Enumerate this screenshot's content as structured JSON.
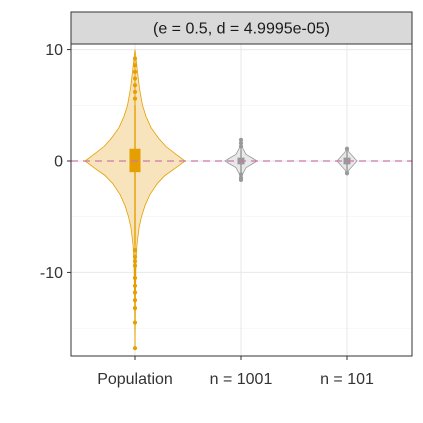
{
  "chart_data": {
    "type": "violin",
    "facet_label": "(e = 0.5, d = 4.9995e-05)",
    "categories": [
      "Population",
      "n = 1001",
      "n = 101"
    ],
    "ylim": [
      -17.5,
      10.5
    ],
    "yticks": [
      {
        "value": 10,
        "label": "10"
      },
      {
        "value": 0,
        "label": "0"
      },
      {
        "value": -10,
        "label": "-10"
      }
    ],
    "reference_line": {
      "value": 0,
      "style": "dashed",
      "color": "#cc79a7"
    },
    "grid": true,
    "series": [
      {
        "category": "Population",
        "color": "#e69f00",
        "fill": "#f6e0b5",
        "profile": [
          [
            10.0,
            0.0
          ],
          [
            9.2,
            0.02
          ],
          [
            8.0,
            0.05
          ],
          [
            6.5,
            0.09
          ],
          [
            5.0,
            0.15
          ],
          [
            4.0,
            0.22
          ],
          [
            3.0,
            0.32
          ],
          [
            2.0,
            0.48
          ],
          [
            1.3,
            0.62
          ],
          [
            0.6,
            0.82
          ],
          [
            0.0,
            1.0
          ],
          [
            -0.6,
            0.82
          ],
          [
            -1.3,
            0.6
          ],
          [
            -2.0,
            0.45
          ],
          [
            -3.0,
            0.3
          ],
          [
            -4.0,
            0.2
          ],
          [
            -5.0,
            0.13
          ],
          [
            -6.0,
            0.08
          ],
          [
            -7.5,
            0.04
          ],
          [
            -9.0,
            0.02
          ],
          [
            -12.0,
            0.01
          ],
          [
            -16.8,
            0.0
          ]
        ],
        "box": {
          "q1": -1.0,
          "q3": 1.1,
          "whisker_low": -7.5,
          "whisker_high": 5.0
        },
        "outliers": [
          9.2,
          8.6,
          8.0,
          7.4,
          6.8,
          6.2,
          5.6,
          -8.0,
          -8.6,
          -9.0,
          -9.4,
          -10.5,
          -11.2,
          -11.8,
          -12.5,
          -13.2,
          -14.5,
          -16.8
        ]
      },
      {
        "category": "n = 1001",
        "color": "#999999",
        "fill": "#e6e6e6",
        "profile": [
          [
            1.9,
            0.0
          ],
          [
            1.2,
            0.03
          ],
          [
            0.6,
            0.1
          ],
          [
            0.2,
            0.25
          ],
          [
            0.0,
            0.32
          ],
          [
            -0.2,
            0.25
          ],
          [
            -0.6,
            0.1
          ],
          [
            -1.2,
            0.03
          ],
          [
            -1.7,
            0.0
          ]
        ],
        "box": {
          "q1": -0.3,
          "q3": 0.3,
          "whisker_low": -1.0,
          "whisker_high": 1.0
        },
        "outliers": [
          1.3,
          1.6,
          1.9,
          -1.2,
          -1.5,
          -1.7
        ]
      },
      {
        "category": "n = 101",
        "color": "#999999",
        "fill": "#e6e6e6",
        "profile": [
          [
            1.2,
            0.0
          ],
          [
            0.8,
            0.04
          ],
          [
            0.4,
            0.12
          ],
          [
            0.0,
            0.2
          ],
          [
            -0.4,
            0.12
          ],
          [
            -0.8,
            0.04
          ],
          [
            -1.2,
            0.0
          ]
        ],
        "box": {
          "q1": -0.3,
          "q3": 0.3,
          "whisker_low": -1.0,
          "whisker_high": 1.0
        },
        "outliers": [
          1.1,
          -1.1
        ]
      }
    ]
  }
}
